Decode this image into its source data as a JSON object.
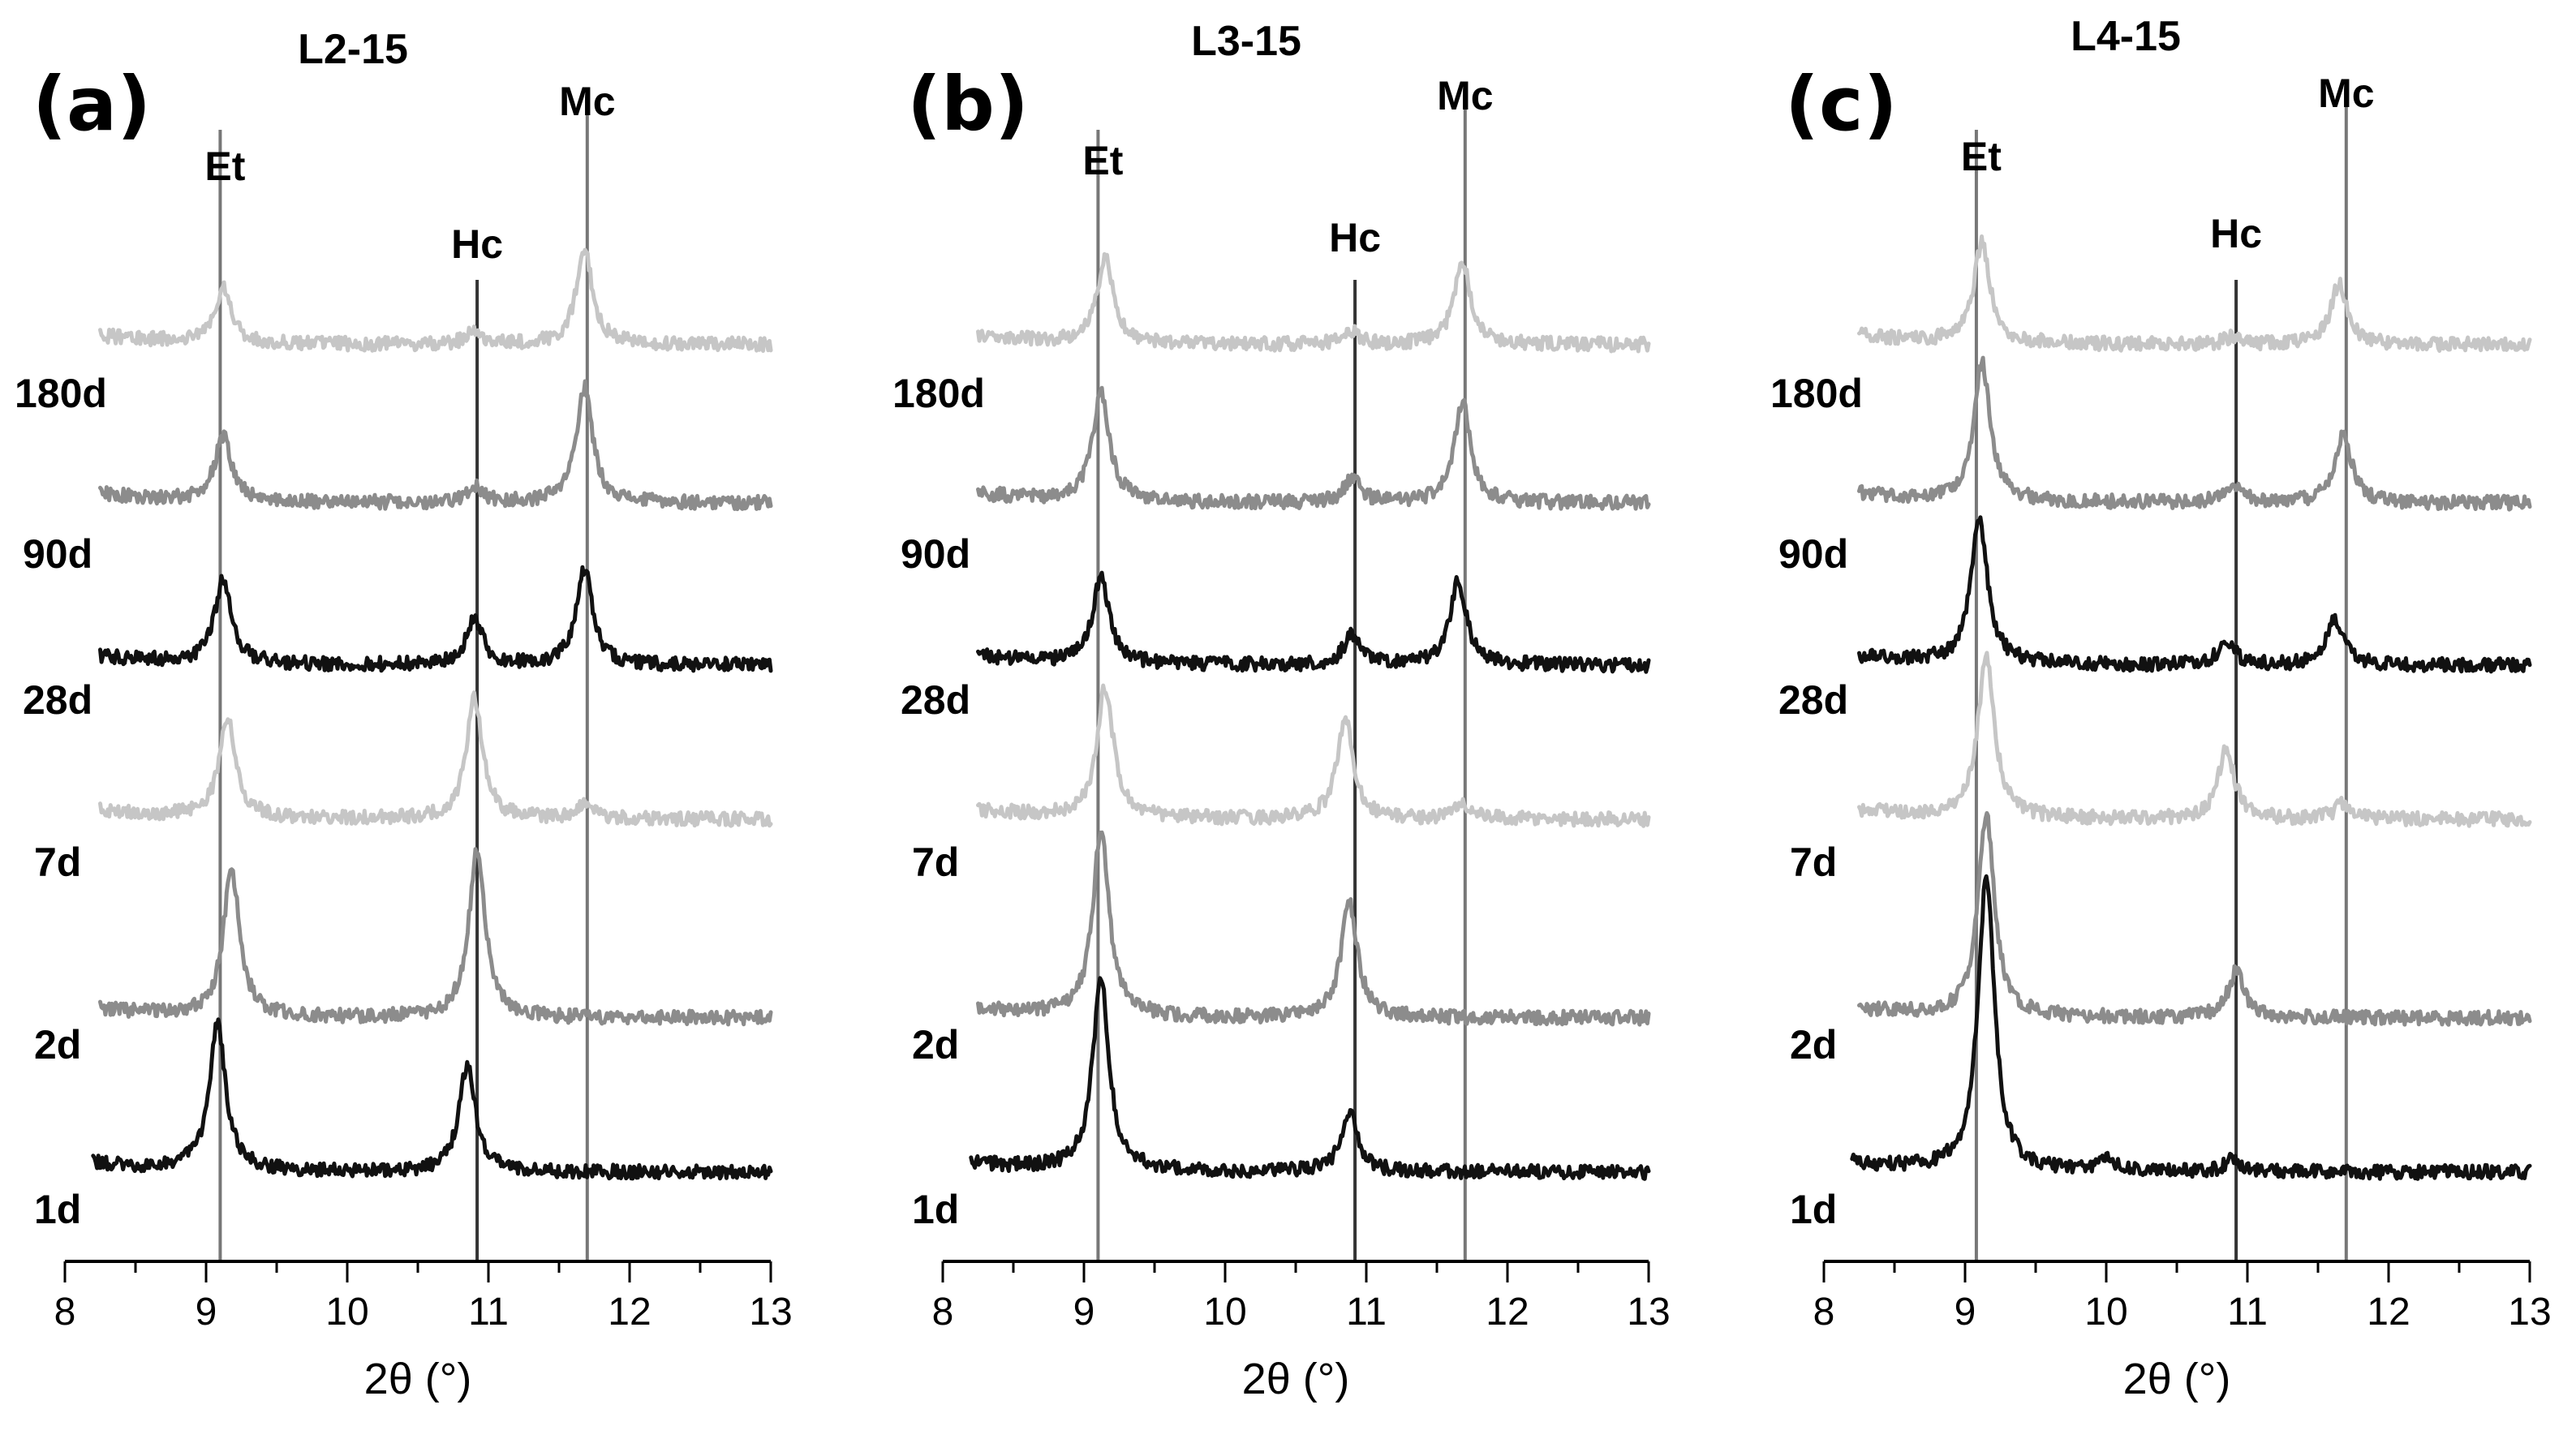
{
  "colors": {
    "axis": "#000000",
    "ref_line_dark": "#333333",
    "ref_line_light": "#777777",
    "trace_levels": [
      "#c6c6c6",
      "#8c8c8c",
      "#111111",
      "#c6c6c6",
      "#8c8c8c",
      "#111111"
    ]
  },
  "chart_data": [
    {
      "type": "line",
      "panel_letter": "(a)",
      "title": "L2-15",
      "xlabel": "2θ (°)",
      "xlim": [
        8,
        13
      ],
      "x_ticks": [
        "8",
        "9",
        "10",
        "11",
        "12",
        "13"
      ],
      "reference_lines": [
        {
          "label": "Et",
          "x": 9.1
        },
        {
          "label": "Hc",
          "x": 10.92
        },
        {
          "label": "Mc",
          "x": 11.7
        }
      ],
      "series": [
        {
          "name": "180d",
          "level": 5,
          "peaks": [
            {
              "x": 9.12,
              "h": 0.35
            },
            {
              "x": 10.9,
              "h": 0.08
            },
            {
              "x": 11.68,
              "h": 0.62
            }
          ]
        },
        {
          "name": "90d",
          "level": 4,
          "peaks": [
            {
              "x": 9.12,
              "h": 0.42
            },
            {
              "x": 10.9,
              "h": 0.1
            },
            {
              "x": 11.68,
              "h": 0.75
            }
          ]
        },
        {
          "name": "28d",
          "level": 3,
          "peaks": [
            {
              "x": 9.12,
              "h": 0.55
            },
            {
              "x": 10.9,
              "h": 0.3
            },
            {
              "x": 11.68,
              "h": 0.62
            }
          ]
        },
        {
          "name": "7d",
          "level": 2,
          "peaks": [
            {
              "x": 9.15,
              "h": 0.65
            },
            {
              "x": 10.9,
              "h": 0.78
            },
            {
              "x": 11.68,
              "h": 0.1
            }
          ]
        },
        {
          "name": "2d",
          "level": 1,
          "peaks": [
            {
              "x": 9.18,
              "h": 0.95
            },
            {
              "x": 10.92,
              "h": 1.1
            }
          ]
        },
        {
          "name": "1d",
          "level": 0,
          "peaks": [
            {
              "x": 9.08,
              "h": 0.95
            },
            {
              "x": 10.85,
              "h": 0.7
            }
          ]
        }
      ]
    },
    {
      "type": "line",
      "panel_letter": "(b)",
      "title": "L3-15",
      "xlabel": "2θ (°)",
      "xlim": [
        8,
        13
      ],
      "x_ticks": [
        "8",
        "9",
        "10",
        "11",
        "12",
        "13"
      ],
      "reference_lines": [
        {
          "label": "Et",
          "x": 9.1
        },
        {
          "label": "Hc",
          "x": 10.92
        },
        {
          "label": "Mc",
          "x": 11.7
        }
      ],
      "series": [
        {
          "name": "180d",
          "level": 5,
          "peaks": [
            {
              "x": 9.15,
              "h": 0.55
            },
            {
              "x": 10.9,
              "h": 0.08
            },
            {
              "x": 11.68,
              "h": 0.55
            }
          ]
        },
        {
          "name": "90d",
          "level": 4,
          "peaks": [
            {
              "x": 9.12,
              "h": 0.72
            },
            {
              "x": 10.9,
              "h": 0.15
            },
            {
              "x": 11.68,
              "h": 0.65
            }
          ]
        },
        {
          "name": "28d",
          "level": 3,
          "peaks": [
            {
              "x": 9.12,
              "h": 0.55
            },
            {
              "x": 10.9,
              "h": 0.2
            },
            {
              "x": 11.65,
              "h": 0.55
            }
          ]
        },
        {
          "name": "7d",
          "level": 2,
          "peaks": [
            {
              "x": 9.15,
              "h": 0.85
            },
            {
              "x": 10.85,
              "h": 0.65
            },
            {
              "x": 11.68,
              "h": 0.1
            }
          ]
        },
        {
          "name": "2d",
          "level": 1,
          "peaks": [
            {
              "x": 9.12,
              "h": 1.2
            },
            {
              "x": 10.88,
              "h": 0.75
            }
          ]
        },
        {
          "name": "1d",
          "level": 0,
          "peaks": [
            {
              "x": 9.12,
              "h": 1.25
            },
            {
              "x": 10.88,
              "h": 0.4
            }
          ]
        }
      ]
    },
    {
      "type": "line",
      "panel_letter": "(c)",
      "title": "L4-15",
      "xlabel": "2θ (°)",
      "xlim": [
        8,
        13
      ],
      "x_ticks": [
        "8",
        "9",
        "10",
        "11",
        "12",
        "13"
      ],
      "reference_lines": [
        {
          "label": "Et",
          "x": 9.08
        },
        {
          "label": "Hc",
          "x": 10.92
        },
        {
          "label": "Mc",
          "x": 11.7
        }
      ],
      "series": [
        {
          "name": "180d",
          "level": 5,
          "peaks": [
            {
              "x": 9.12,
              "h": 0.65
            },
            {
              "x": 10.9,
              "h": 0.05
            },
            {
              "x": 11.65,
              "h": 0.4
            }
          ]
        },
        {
          "name": "90d",
          "level": 4,
          "peaks": [
            {
              "x": 9.12,
              "h": 0.9
            },
            {
              "x": 10.9,
              "h": 0.12
            },
            {
              "x": 11.68,
              "h": 0.45
            }
          ]
        },
        {
          "name": "28d",
          "level": 3,
          "peaks": [
            {
              "x": 9.1,
              "h": 0.95
            },
            {
              "x": 10.85,
              "h": 0.15
            },
            {
              "x": 11.62,
              "h": 0.3
            }
          ]
        },
        {
          "name": "7d",
          "level": 2,
          "peaks": [
            {
              "x": 9.15,
              "h": 1.05
            },
            {
              "x": 10.85,
              "h": 0.45
            },
            {
              "x": 11.68,
              "h": 0.1
            }
          ]
        },
        {
          "name": "2d",
          "level": 1,
          "peaks": [
            {
              "x": 9.15,
              "h": 1.3
            },
            {
              "x": 10.92,
              "h": 0.3
            }
          ]
        },
        {
          "name": "1d",
          "level": 0,
          "peaks": [
            {
              "x": 9.15,
              "h": 1.9
            },
            {
              "x": 10.0,
              "h": 0.08
            },
            {
              "x": 10.9,
              "h": 0.08
            }
          ]
        }
      ]
    }
  ]
}
